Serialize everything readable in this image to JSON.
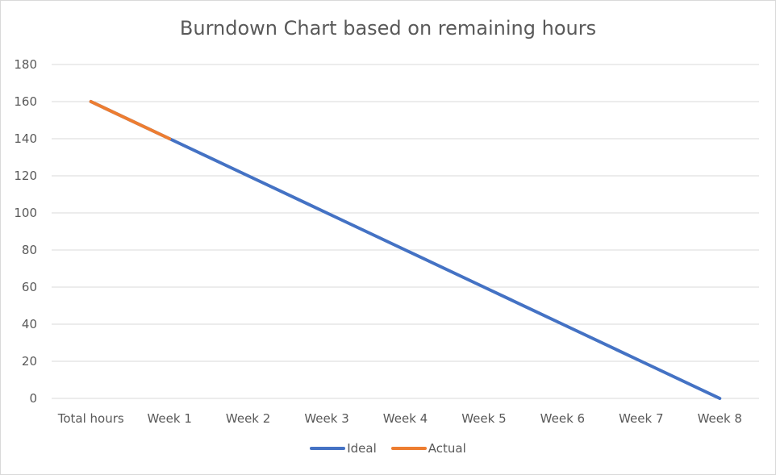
{
  "chart_data": {
    "type": "line",
    "title": "Burndown Chart based on remaining hours",
    "xlabel": "",
    "ylabel": "",
    "categories": [
      "Total hours",
      "Week 1",
      "Week 2",
      "Week 3",
      "Week 4",
      "Week 5",
      "Week 6",
      "Week 7",
      "Week 8"
    ],
    "ylim": [
      0,
      180
    ],
    "yticks": [
      0,
      20,
      40,
      60,
      80,
      100,
      120,
      140,
      160,
      180
    ],
    "grid": true,
    "legend_position": "bottom",
    "series": [
      {
        "name": "Ideal",
        "color": "#4472C4",
        "values": [
          160,
          140,
          120,
          100,
          80,
          60,
          40,
          20,
          0
        ]
      },
      {
        "name": "Actual",
        "color": "#ED7D31",
        "values": [
          160,
          140,
          null,
          null,
          null,
          null,
          null,
          null,
          null
        ]
      }
    ]
  }
}
